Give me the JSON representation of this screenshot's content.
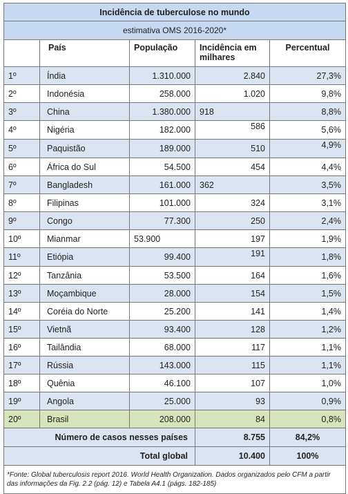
{
  "title": "Incidência de tuberculose no mundo",
  "subtitle": "estimativa OMS 2016-2020*",
  "header": [
    "País",
    "População",
    "Incidência em milhares",
    "Percentual"
  ],
  "rows": [
    [
      "1º",
      "Índia",
      "1.310.000",
      "2.840",
      "27,3%"
    ],
    [
      "2º",
      "Indonésia",
      "258.000",
      "1.020",
      "9,8%"
    ],
    [
      "3º",
      "China",
      "1.380.000",
      "918",
      "8,8%"
    ],
    [
      "4º",
      "Nigéria",
      "182.000",
      "586",
      "5,6%"
    ],
    [
      "5º",
      "Paquistão",
      "189.000",
      "510",
      "4,9%"
    ],
    [
      "6º",
      "África do Sul",
      "54.500",
      "454",
      "4,4%"
    ],
    [
      "7º",
      "Bangladesh",
      "161.000",
      "362",
      "3,5%"
    ],
    [
      "8º",
      "Filipinas",
      "101.000",
      "324",
      "3,1%"
    ],
    [
      "9º",
      "Congo",
      "77.300",
      "250",
      "2,4%"
    ],
    [
      "10º",
      "Mianmar",
      "53.900",
      "197",
      "1,9%"
    ],
    [
      "11º",
      "Etiópia",
      "99.400",
      "191",
      "1,8%"
    ],
    [
      "12º",
      "Tanzânia",
      "53.500",
      "164",
      "1,6%"
    ],
    [
      "13º",
      "Moçambique",
      "28.000",
      "154",
      "1,5%"
    ],
    [
      "14º",
      "Coréia do Norte",
      "25.200",
      "141",
      "1,4%"
    ],
    [
      "15º",
      "Vietnã",
      "93.400",
      "128",
      "1,2%"
    ],
    [
      "16º",
      "Tailândia",
      "68.000",
      "117",
      "1,1%"
    ],
    [
      "17º",
      "Rússia",
      "143.000",
      "115",
      "1,1%"
    ],
    [
      "18º",
      "Quênia",
      "46.100",
      "107",
      "1,0%"
    ],
    [
      "19º",
      "Angola",
      "25.000",
      "93",
      "0,9%"
    ],
    [
      "20º",
      "Brasil",
      "208.000",
      "84",
      "0,8%"
    ]
  ],
  "summary": [
    {
      "label": "Número de casos nesses países",
      "incidence": "8.755",
      "percent": "84,2%"
    },
    {
      "label": "Total global",
      "incidence": "10.400",
      "percent": "100%"
    }
  ],
  "footnote": "*Fonte: Global tuberculosis report 2016. World Health Organization. Dados organizados pelo CFM a partir das informações da Fig. 2.2 (pág. 12) e Tabela A4.1 (págs. 182-185)"
}
